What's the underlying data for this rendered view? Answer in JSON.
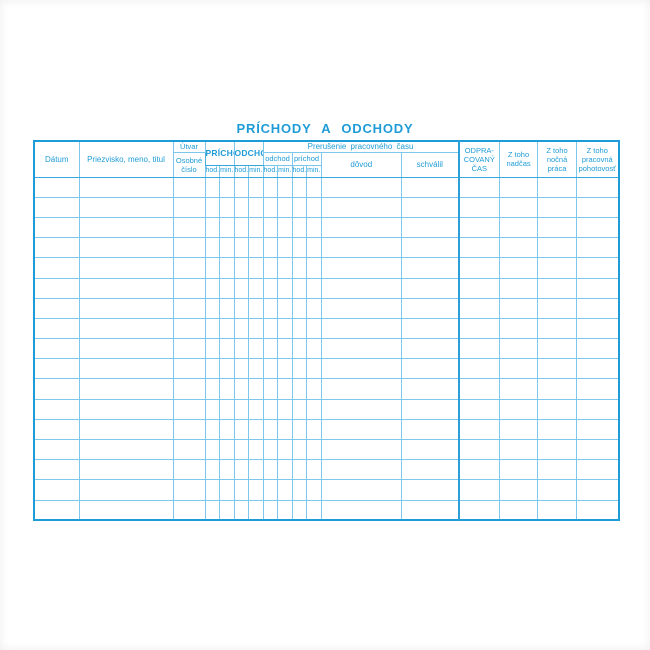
{
  "page": {
    "title": "PRÍCHODY  A  ODCHODY",
    "accent_color": "#1f9cd7",
    "grid_color": "#7cc7eb"
  },
  "table": {
    "headers": {
      "datum": "Dátum",
      "priezvisko": "Priezvisko, meno, titul",
      "utvar": "Útvar",
      "osobne_cislo": "Osobné\nčíslo",
      "prichod": "PRÍCHOD",
      "odchod": "ODCHOD",
      "prerusenie": "Prerušenie  pracovného  času",
      "prerusenie_odchod": "odchod",
      "prerusenie_prichod": "príchod",
      "hod": "hod.",
      "min": "min.",
      "dovod": "dôvod",
      "schvalil": "schválil",
      "odpracovany_cas": "ODPRA-\nCOVANÝ\nČAS",
      "z_toho_nadcas": "Z toho\nnadčas",
      "z_toho_nocna_praca": "Z toho\nnočná\npráca",
      "z_toho_pracovna_pohotovost": "Z toho\npracovná\npohotovosť"
    },
    "body": {
      "row_count": 17,
      "column_count": 17
    }
  }
}
